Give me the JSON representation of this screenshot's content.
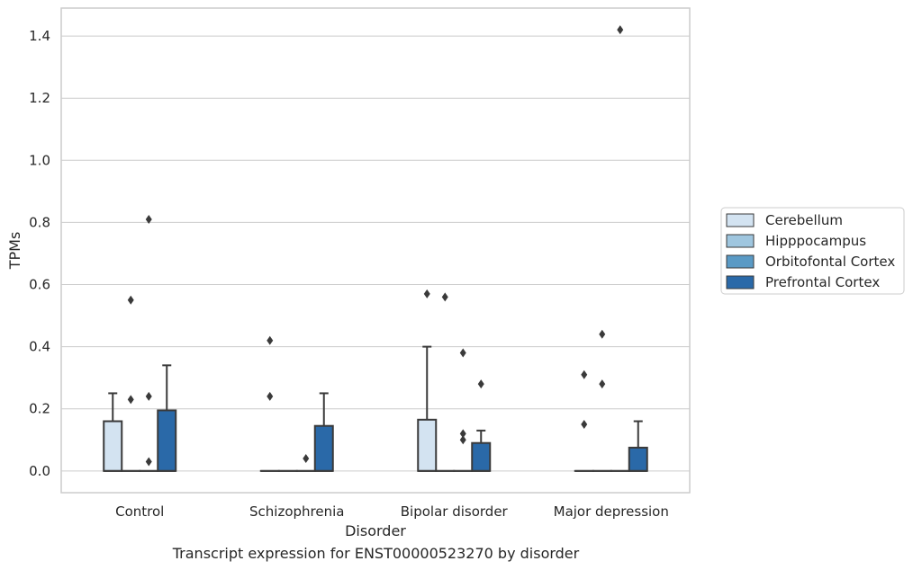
{
  "caption": "Transcript expression for ENST00000523270 by disorder",
  "chart_data": {
    "type": "box",
    "xlabel": "Disorder",
    "ylabel": "TPMs",
    "ylim": [
      -0.07,
      1.49
    ],
    "yticks": [
      0.0,
      0.2,
      0.4,
      0.6,
      0.8,
      1.0,
      1.2,
      1.4
    ],
    "ytick_labels": [
      "0.0",
      "0.2",
      "0.4",
      "0.6",
      "0.8",
      "1.0",
      "1.2",
      "1.4"
    ],
    "grid": "horizontal",
    "legend_position": "center-right-outside",
    "categories": [
      "Control",
      "Schizophrenia",
      "Bipolar disorder",
      "Major depression"
    ],
    "series": [
      {
        "name": "Cerebellum",
        "color": "#d3e3f1",
        "boxes": [
          {
            "q1": 0.0,
            "median": 0.0,
            "q3": 0.16,
            "whisker_low": 0.0,
            "whisker_high": 0.25,
            "outliers": []
          },
          {
            "q1": 0.0,
            "median": 0.0,
            "q3": 0.0,
            "whisker_low": 0.0,
            "whisker_high": 0.0,
            "outliers": [
              0.24,
              0.42
            ]
          },
          {
            "q1": 0.0,
            "median": 0.0,
            "q3": 0.165,
            "whisker_low": 0.0,
            "whisker_high": 0.4,
            "outliers": [
              0.57
            ]
          },
          {
            "q1": 0.0,
            "median": 0.0,
            "q3": 0.0,
            "whisker_low": 0.0,
            "whisker_high": 0.0,
            "outliers": [
              0.15,
              0.31
            ]
          }
        ]
      },
      {
        "name": "Hipppocampus",
        "color": "#9fc6df",
        "boxes": [
          {
            "q1": 0.0,
            "median": 0.0,
            "q3": 0.0,
            "whisker_low": 0.0,
            "whisker_high": 0.0,
            "outliers": [
              0.23,
              0.55
            ]
          },
          {
            "q1": 0.0,
            "median": 0.0,
            "q3": 0.0,
            "whisker_low": 0.0,
            "whisker_high": 0.0,
            "outliers": []
          },
          {
            "q1": 0.0,
            "median": 0.0,
            "q3": 0.0,
            "whisker_low": 0.0,
            "whisker_high": 0.0,
            "outliers": [
              0.56
            ]
          },
          {
            "q1": 0.0,
            "median": 0.0,
            "q3": 0.0,
            "whisker_low": 0.0,
            "whisker_high": 0.0,
            "outliers": [
              0.28,
              0.44
            ]
          }
        ]
      },
      {
        "name": "Orbitofontal Cortex",
        "color": "#5a9ac5",
        "boxes": [
          {
            "q1": 0.0,
            "median": 0.0,
            "q3": 0.0,
            "whisker_low": 0.0,
            "whisker_high": 0.0,
            "outliers": [
              0.03,
              0.24,
              0.81
            ]
          },
          {
            "q1": 0.0,
            "median": 0.0,
            "q3": 0.0,
            "whisker_low": 0.0,
            "whisker_high": 0.0,
            "outliers": [
              0.04
            ]
          },
          {
            "q1": 0.0,
            "median": 0.0,
            "q3": 0.0,
            "whisker_low": 0.0,
            "whisker_high": 0.0,
            "outliers": [
              0.1,
              0.12,
              0.38
            ]
          },
          {
            "q1": 0.0,
            "median": 0.0,
            "q3": 0.0,
            "whisker_low": 0.0,
            "whisker_high": 0.0,
            "outliers": [
              1.42
            ]
          }
        ]
      },
      {
        "name": "Prefrontal Cortex",
        "color": "#2a69a8",
        "boxes": [
          {
            "q1": 0.0,
            "median": 0.0,
            "q3": 0.195,
            "whisker_low": 0.0,
            "whisker_high": 0.34,
            "outliers": []
          },
          {
            "q1": 0.0,
            "median": 0.0,
            "q3": 0.145,
            "whisker_low": 0.0,
            "whisker_high": 0.25,
            "outliers": []
          },
          {
            "q1": 0.0,
            "median": 0.0,
            "q3": 0.09,
            "whisker_low": 0.0,
            "whisker_high": 0.13,
            "outliers": [
              0.28
            ]
          },
          {
            "q1": 0.0,
            "median": 0.0,
            "q3": 0.075,
            "whisker_low": 0.0,
            "whisker_high": 0.16,
            "outliers": []
          }
        ]
      }
    ]
  }
}
